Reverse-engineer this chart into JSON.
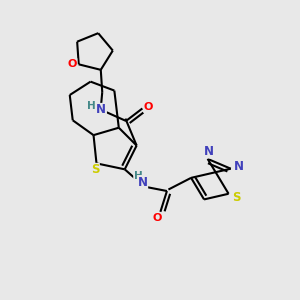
{
  "bg_color": "#e8e8e8",
  "bond_color": "#000000",
  "atom_colors": {
    "O": "#ff0000",
    "N": "#4040bb",
    "S": "#cccc00",
    "H": "#448888",
    "C": "#000000"
  },
  "bond_width": 1.5,
  "fig_size": [
    3.0,
    3.0
  ],
  "dpi": 100
}
